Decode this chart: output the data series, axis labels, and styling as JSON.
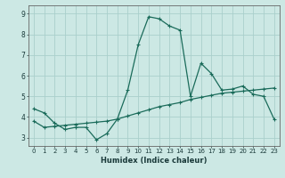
{
  "xlabel": "Humidex (Indice chaleur)",
  "x_values": [
    0,
    1,
    2,
    3,
    4,
    5,
    6,
    7,
    8,
    9,
    10,
    11,
    12,
    13,
    14,
    15,
    16,
    17,
    18,
    19,
    20,
    21,
    22,
    23
  ],
  "line1_y": [
    4.4,
    4.2,
    3.7,
    3.4,
    3.5,
    3.5,
    2.9,
    3.2,
    3.9,
    5.3,
    7.5,
    8.85,
    8.75,
    8.4,
    8.2,
    5.0,
    6.6,
    6.1,
    5.3,
    5.35,
    5.5,
    5.1,
    5.0,
    3.9
  ],
  "line2_y": [
    3.8,
    3.5,
    3.55,
    3.6,
    3.65,
    3.7,
    3.75,
    3.8,
    3.9,
    4.05,
    4.2,
    4.35,
    4.5,
    4.6,
    4.7,
    4.85,
    4.95,
    5.05,
    5.15,
    5.2,
    5.25,
    5.3,
    5.35,
    5.4
  ],
  "line_color": "#1a6b5a",
  "bg_color": "#cce8e4",
  "grid_color": "#aacfcc",
  "ylim": [
    2.6,
    9.4
  ],
  "yticks": [
    3,
    4,
    5,
    6,
    7,
    8,
    9
  ],
  "xlim": [
    -0.5,
    23.5
  ],
  "marker_size": 2.0
}
